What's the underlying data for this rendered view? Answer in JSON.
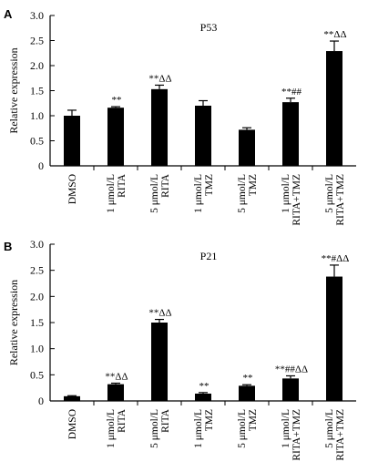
{
  "chart_data": [
    {
      "panel": "A",
      "type": "bar",
      "title": "P53",
      "ylabel": "Relative expression",
      "xlabel": "",
      "ylim": [
        0,
        3.0
      ],
      "yticks": [
        "0",
        "0.5",
        "1.0",
        "1.5",
        "2.0",
        "2.5",
        "3.0"
      ],
      "categories": [
        [
          "DMSO"
        ],
        [
          "1 μmol/L",
          "RITA"
        ],
        [
          "5 μmol/L",
          "RITA"
        ],
        [
          "1 μmol/L",
          "TMZ"
        ],
        [
          "5 μmol/L",
          "TMZ"
        ],
        [
          "1 μmol/L",
          "RITA+TMZ"
        ],
        [
          "5 μmol/L",
          "RITA+TMZ"
        ]
      ],
      "values": [
        1.0,
        1.16,
        1.53,
        1.2,
        0.72,
        1.27,
        2.29
      ],
      "errors": [
        0.11,
        0.02,
        0.08,
        0.1,
        0.04,
        0.08,
        0.2
      ],
      "annotations": [
        "",
        "**",
        "**ΔΔ",
        "",
        "",
        "**##",
        "**ΔΔ"
      ]
    },
    {
      "panel": "B",
      "type": "bar",
      "title": "P21",
      "ylabel": "Relative expression",
      "xlabel": "",
      "ylim": [
        0,
        3.0
      ],
      "yticks": [
        "0",
        "0.5",
        "1.0",
        "1.5",
        "2.0",
        "2.5",
        "3.0"
      ],
      "categories": [
        [
          "DMSO"
        ],
        [
          "1 μmol/L",
          "RITA"
        ],
        [
          "5 μmol/L",
          "RITA"
        ],
        [
          "1 μmol/L",
          "TMZ"
        ],
        [
          "5 μmol/L",
          "TMZ"
        ],
        [
          "1 μmol/L",
          "RITA+TMZ"
        ],
        [
          "5 μmol/L",
          "RITA+TMZ"
        ]
      ],
      "values": [
        0.09,
        0.32,
        1.5,
        0.14,
        0.29,
        0.43,
        2.38
      ],
      "errors": [
        0.01,
        0.02,
        0.06,
        0.02,
        0.02,
        0.05,
        0.22
      ],
      "annotations": [
        "",
        "**ΔΔ",
        "**ΔΔ",
        "**",
        "**",
        "**##ΔΔ",
        "**#ΔΔ"
      ]
    }
  ]
}
